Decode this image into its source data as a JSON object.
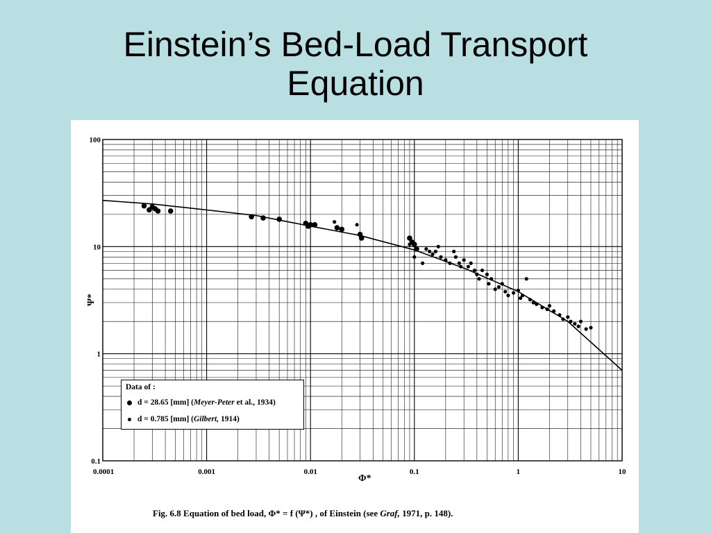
{
  "slide": {
    "title_line1": "Einstein’s Bed-Load Transport",
    "title_line2": "Equation"
  },
  "figure": {
    "caption_prefix": "Fig. 6.8   Equation of bed load, ",
    "caption_formula": "Φ* = f (Ψ*)",
    "caption_middle": " , of Einstein (see ",
    "caption_ref_author": "Graf,",
    "caption_suffix": " 1971, p. 148).",
    "legend": {
      "title": "Data of :",
      "entries": [
        {
          "marker": "large-dot",
          "label": "d = 28.65 [mm] (",
          "ref_italic": "Meyer-Peter",
          "ref_rest": " et al., 1934)"
        },
        {
          "marker": "small-dot",
          "label": "d = 0.785 [mm] (",
          "ref_italic": "Gilbert,",
          "ref_rest": " 1914)"
        }
      ]
    }
  },
  "chart_data": {
    "type": "scatter",
    "xlabel": "Φ*",
    "ylabel": "Ψ*",
    "x_scale": "log",
    "y_scale": "log",
    "xlim": [
      0.0001,
      10
    ],
    "ylim": [
      0.1,
      100
    ],
    "x_ticks": [
      {
        "value": 0.0001,
        "label": "0.0001"
      },
      {
        "value": 0.001,
        "label": "0.001"
      },
      {
        "value": 0.01,
        "label": "0.01"
      },
      {
        "value": 0.1,
        "label": "0.1"
      },
      {
        "value": 1,
        "label": "1"
      },
      {
        "value": 10,
        "label": "10"
      }
    ],
    "y_ticks": [
      {
        "value": 0.1,
        "label": "0.1"
      },
      {
        "value": 1,
        "label": "1"
      },
      {
        "value": 10,
        "label": "10"
      },
      {
        "value": 100,
        "label": "100"
      }
    ],
    "grid": true,
    "legend_position": "bottom-left",
    "curve": {
      "x": [
        0.0001,
        0.0003,
        0.001,
        0.003,
        0.01,
        0.03,
        0.1,
        0.3,
        1,
        3,
        10
      ],
      "y": [
        27,
        25,
        22,
        19.5,
        15.5,
        12.7,
        9.3,
        6.3,
        3.8,
        2.0,
        0.7
      ]
    },
    "series": [
      {
        "name": "d = 28.65 [mm] (Meyer-Peter et al., 1934)",
        "marker": "large",
        "x": [
          0.00025,
          0.00028,
          0.0003,
          0.00032,
          0.00034,
          0.00045,
          0.0027,
          0.0035,
          0.005,
          0.009,
          0.0095,
          0.01,
          0.011,
          0.018,
          0.02,
          0.03,
          0.031,
          0.09,
          0.095,
          0.1,
          0.105
        ],
        "y": [
          24,
          22,
          23.5,
          22.5,
          21.5,
          21.5,
          19,
          18.5,
          18,
          16.5,
          15.5,
          16,
          16,
          15,
          14.5,
          13,
          12,
          12,
          11,
          10.5,
          9.5
        ]
      },
      {
        "name": "d = 0.785 [mm] (Gilbert, 1914)",
        "marker": "small",
        "x": [
          0.017,
          0.028,
          0.09,
          0.1,
          0.12,
          0.13,
          0.14,
          0.15,
          0.16,
          0.17,
          0.18,
          0.2,
          0.22,
          0.24,
          0.25,
          0.27,
          0.28,
          0.3,
          0.33,
          0.35,
          0.38,
          0.4,
          0.42,
          0.45,
          0.5,
          0.52,
          0.55,
          0.6,
          0.65,
          0.7,
          0.75,
          0.8,
          0.9,
          1.0,
          1.05,
          1.1,
          1.2,
          1.3,
          1.4,
          1.5,
          1.7,
          1.9,
          2.0,
          2.2,
          2.5,
          2.7,
          3.0,
          3.2,
          3.5,
          3.8,
          4.0,
          4.5,
          5.0
        ],
        "y": [
          17,
          16,
          10.5,
          8,
          7,
          9.5,
          9,
          8.5,
          9,
          10,
          8,
          7.5,
          7,
          9,
          8,
          7,
          6.5,
          7.5,
          6.5,
          7,
          6,
          5.5,
          5,
          6,
          5.5,
          4.5,
          5,
          4,
          4.2,
          4.5,
          3.8,
          3.5,
          3.7,
          3.9,
          3.3,
          3.5,
          5,
          3.2,
          3.0,
          2.9,
          2.7,
          2.6,
          2.8,
          2.5,
          2.3,
          2.1,
          2.2,
          2.0,
          1.9,
          1.8,
          2.0,
          1.7,
          1.75
        ]
      }
    ]
  }
}
